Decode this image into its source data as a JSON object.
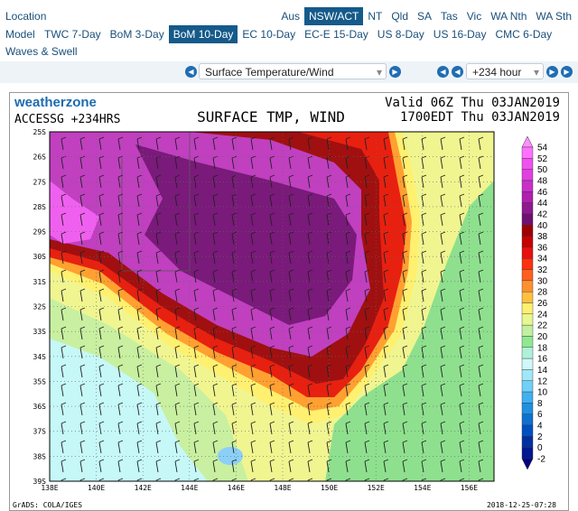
{
  "nav": {
    "location_label": "Location",
    "regions": [
      "Aus",
      "NSW/ACT",
      "NT",
      "Qld",
      "SA",
      "Tas",
      "Vic",
      "WA Nth",
      "WA Sth"
    ],
    "selected_region": 1,
    "model_label": "Model",
    "models": [
      "TWC 7-Day",
      "BoM 3-Day",
      "BoM 10-Day",
      "EC 10-Day",
      "EC-E 15-Day",
      "US 8-Day",
      "US 16-Day",
      "CMC 6-Day"
    ],
    "selected_model": 2,
    "extra": "Waves & Swell"
  },
  "controls": {
    "product": "Surface Temperature/Wind",
    "hour": "+234 hour"
  },
  "map": {
    "brand": "weatherzone",
    "run": "ACCESSG +234HRS",
    "title": "SURFACE TMP, WIND",
    "valid_utc": "Valid 06Z Thu 03JAN2019",
    "valid_local": "1700EDT Thu 03JAN2019",
    "lat_labels": [
      "25S",
      "26S",
      "27S",
      "28S",
      "29S",
      "30S",
      "31S",
      "32S",
      "33S",
      "34S",
      "35S",
      "36S",
      "37S",
      "38S",
      "39S"
    ],
    "lon_labels": [
      "138E",
      "140E",
      "142E",
      "144E",
      "146E",
      "148E",
      "150E",
      "152E",
      "154E",
      "156E"
    ],
    "colorbar": [
      54,
      52,
      50,
      48,
      46,
      44,
      42,
      40,
      38,
      36,
      34,
      32,
      30,
      28,
      26,
      24,
      22,
      20,
      18,
      16,
      14,
      12,
      10,
      8,
      6,
      4,
      2,
      0,
      -2
    ],
    "footer_left": "GrADS: COLA/IGES",
    "footer_right": "2018-12-25-07:28"
  }
}
